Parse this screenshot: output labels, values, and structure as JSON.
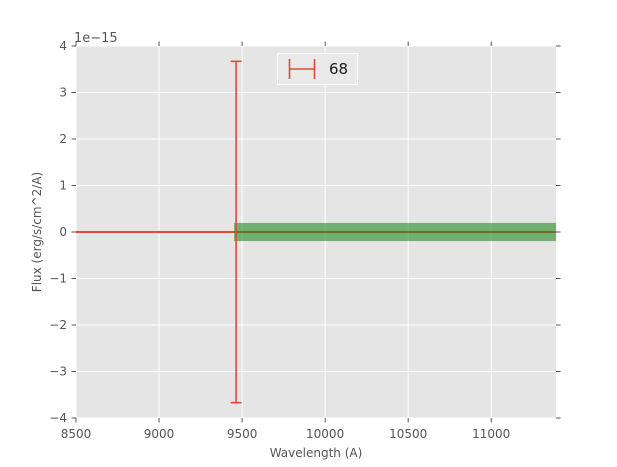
{
  "palette": {
    "figure_bg": "#ffffff",
    "axes_bg": "#e5e5e5",
    "grid": "#ffffff",
    "tick": "#555555",
    "label_text": "#555555",
    "legend_text": "#1a1a1a",
    "legend_bg": "#e9e9e9",
    "legend_border": "#ffffff",
    "red": "#e24a33",
    "green": "#228b22"
  },
  "chart_data": {
    "type": "line",
    "title": "",
    "xlabel": "Wavelength (A)",
    "ylabel": "Flux (erg/s/cm^2/A)",
    "offset_text": "1e−15",
    "scale_factor_note": "y values are in units of 1e-15 erg/s/cm^2/A",
    "xlim": [
      8500,
      11390
    ],
    "ylim": [
      -4,
      4
    ],
    "xticks": [
      8500,
      9000,
      9500,
      10000,
      10500,
      11000
    ],
    "yticks": [
      -4,
      -3,
      -2,
      -1,
      0,
      1,
      2,
      3,
      4
    ],
    "grid": true,
    "tick_sides": [
      "top",
      "bottom",
      "left",
      "right"
    ],
    "legend": {
      "label": "68",
      "marker": "errorbar",
      "position": "upper center-left"
    },
    "series": [
      {
        "name": "flux-line",
        "type": "line",
        "color": "#e24a33",
        "linewidth": 2,
        "x": [
          8500,
          11390
        ],
        "y": [
          0,
          0
        ]
      },
      {
        "name": "flux-errorbar",
        "type": "errorbar",
        "color": "#e24a33",
        "linewidth": 1.6,
        "x": 9464,
        "y": 0,
        "yerr": 3.67,
        "cap_half_A": 33
      },
      {
        "name": "uncertainty-band",
        "type": "band",
        "color": "#228b22",
        "opacity": 0.6,
        "x_range": [
          9452,
          11390
        ],
        "y_center": 0,
        "y_halfwidth": 0.195
      }
    ]
  }
}
